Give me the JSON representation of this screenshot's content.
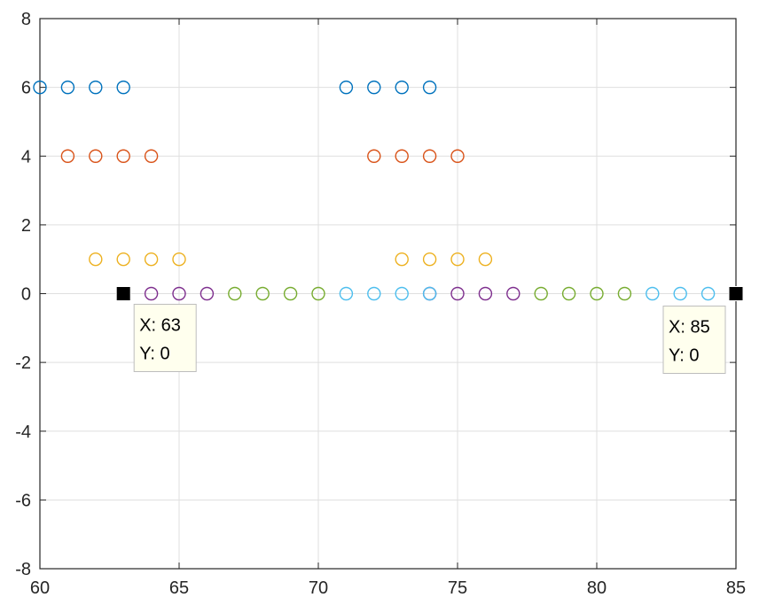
{
  "chart_data": {
    "type": "scatter",
    "title": "",
    "xlabel": "",
    "ylabel": "",
    "xlim": [
      60,
      85
    ],
    "ylim": [
      -8,
      8
    ],
    "xticks": [
      60,
      65,
      70,
      75,
      80,
      85
    ],
    "yticks": [
      -8,
      -6,
      -4,
      -2,
      0,
      2,
      4,
      6,
      8
    ],
    "grid": true,
    "marker": "circle-open",
    "series": [
      {
        "color": "#0072BD",
        "points": [
          [
            60,
            6
          ],
          [
            61,
            6
          ],
          [
            62,
            6
          ],
          [
            63,
            6
          ],
          [
            71,
            6
          ],
          [
            72,
            6
          ],
          [
            73,
            6
          ],
          [
            74,
            6
          ]
        ]
      },
      {
        "color": "#D95319",
        "points": [
          [
            61,
            4
          ],
          [
            62,
            4
          ],
          [
            63,
            4
          ],
          [
            64,
            4
          ],
          [
            72,
            4
          ],
          [
            73,
            4
          ],
          [
            74,
            4
          ],
          [
            75,
            4
          ]
        ]
      },
      {
        "color": "#EDB120",
        "points": [
          [
            62,
            1
          ],
          [
            63,
            1
          ],
          [
            64,
            1
          ],
          [
            65,
            1
          ],
          [
            73,
            1
          ],
          [
            74,
            1
          ],
          [
            75,
            1
          ],
          [
            76,
            1
          ]
        ]
      },
      {
        "color": "#7E2F8E",
        "points": [
          [
            63,
            0
          ],
          [
            64,
            0
          ],
          [
            65,
            0
          ],
          [
            66,
            0
          ],
          [
            74,
            0
          ],
          [
            75,
            0
          ],
          [
            76,
            0
          ],
          [
            77,
            0
          ]
        ]
      },
      {
        "color": "#77AC30",
        "points": [
          [
            67,
            0
          ],
          [
            68,
            0
          ],
          [
            69,
            0
          ],
          [
            70,
            0
          ],
          [
            78,
            0
          ],
          [
            79,
            0
          ],
          [
            80,
            0
          ],
          [
            81,
            0
          ]
        ]
      },
      {
        "color": "#4DBEEE",
        "points": [
          [
            71,
            0
          ],
          [
            72,
            0
          ],
          [
            73,
            0
          ],
          [
            74,
            0
          ],
          [
            82,
            0
          ],
          [
            83,
            0
          ],
          [
            84,
            0
          ],
          [
            85,
            0
          ]
        ]
      }
    ],
    "datatips": [
      {
        "x": 63,
        "y": 0,
        "x_label": "X: 63",
        "y_label": "Y: 0"
      },
      {
        "x": 85,
        "y": 0,
        "x_label": "X: 85",
        "y_label": "Y: 0"
      }
    ]
  }
}
